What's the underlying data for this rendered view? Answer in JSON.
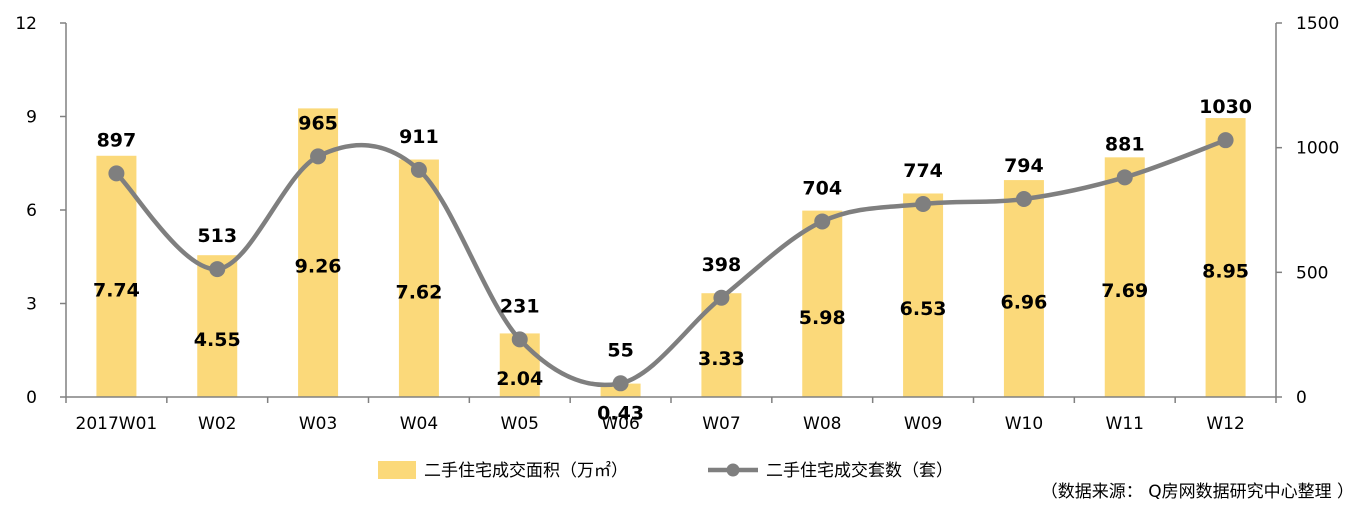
{
  "chart_data": {
    "type": "bar+line",
    "categories": [
      "2017W01",
      "W02",
      "W03",
      "W04",
      "W05",
      "W06",
      "W07",
      "W08",
      "W09",
      "W10",
      "W11",
      "W12"
    ],
    "series": [
      {
        "name": "二手住宅成交面积（万㎡）",
        "type": "bar",
        "axis": "left",
        "values": [
          7.74,
          4.55,
          9.26,
          7.62,
          2.04,
          0.43,
          3.33,
          5.98,
          6.53,
          6.96,
          7.69,
          8.95
        ],
        "labels": [
          "7.74",
          "4.55",
          "9.26",
          "7.62",
          "2.04",
          "0.43",
          "3.33",
          "5.98",
          "6.53",
          "6.96",
          "7.69",
          "8.95"
        ]
      },
      {
        "name": "二手住宅成交套数（套）",
        "type": "line",
        "axis": "right",
        "smooth": true,
        "values": [
          897,
          513,
          965,
          911,
          231,
          55,
          398,
          704,
          774,
          794,
          881,
          1030
        ],
        "labels": [
          "897",
          "513",
          "965",
          "911",
          "231",
          "55",
          "398",
          "704",
          "774",
          "794",
          "881",
          "1030"
        ]
      }
    ],
    "y_left": {
      "range": [
        0,
        12
      ],
      "ticks": [
        "0",
        "3",
        "6",
        "9",
        "12"
      ]
    },
    "y_right": {
      "range": [
        0,
        1500
      ],
      "ticks": [
        "0",
        "500",
        "1000",
        "1500"
      ]
    },
    "grid": false,
    "legend_position": "bottom",
    "colors": {
      "bar": "#fbd97a",
      "line": "#7f7f7f",
      "axis": "#808080"
    }
  },
  "source": "（数据来源： Q房网数据研究中心整理 ）"
}
